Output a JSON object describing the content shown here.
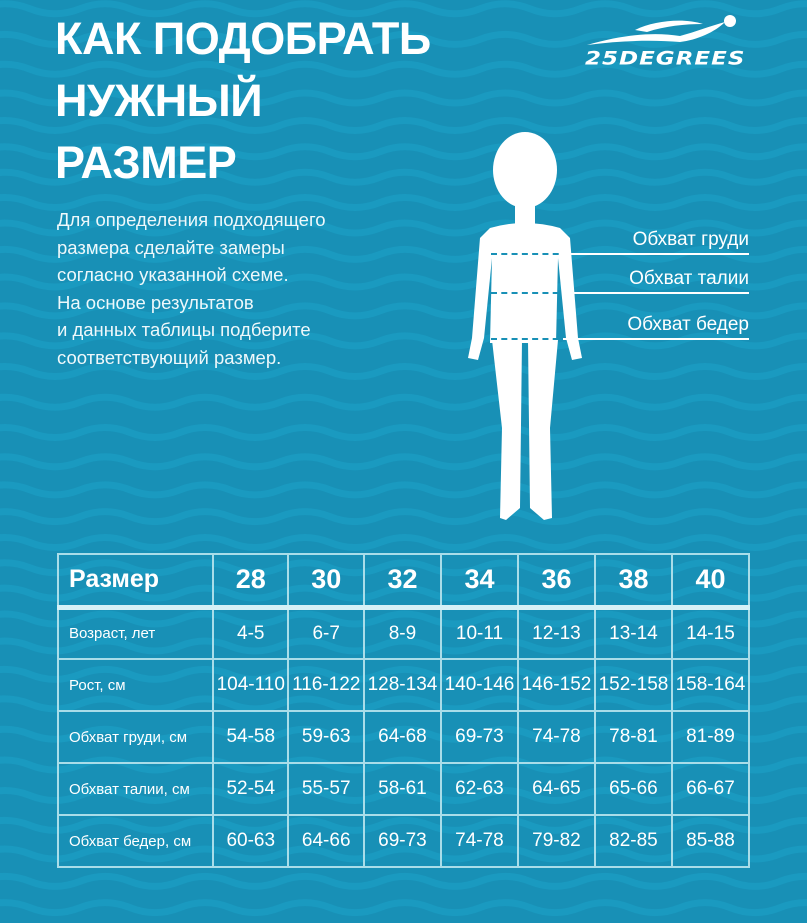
{
  "colors": {
    "background": "#1890b6",
    "text": "#ffffff",
    "table_border": "#a9dde9"
  },
  "title": [
    "КАК ПОДОБРАТЬ",
    "НУЖНЫЙ",
    "РАЗМЕР"
  ],
  "description": [
    "Для определения подходящего",
    "размера сделайте замеры",
    "согласно указанной схеме.",
    "На основе результатов",
    "и данных таблицы подберите",
    "соответствующий размер."
  ],
  "logo": {
    "text": "25DEGREES",
    "icon": "swimmer-logo-icon"
  },
  "measurements": [
    "Обхват груди",
    "Обхват талии",
    "Обхват бедер"
  ],
  "table": {
    "header": [
      "Размер",
      "28",
      "30",
      "32",
      "34",
      "36",
      "38",
      "40"
    ],
    "rows": [
      [
        "Возраст, лет",
        "4-5",
        "6-7",
        "8-9",
        "10-11",
        "12-13",
        "13-14",
        "14-15"
      ],
      [
        "Рост, см",
        "104-110",
        "116-122",
        "128-134",
        "140-146",
        "146-152",
        "152-158",
        "158-164"
      ],
      [
        "Обхват груди, см",
        "54-58",
        "59-63",
        "64-68",
        "69-73",
        "74-78",
        "78-81",
        "81-89"
      ],
      [
        "Обхват талии, см",
        "52-54",
        "55-57",
        "58-61",
        "62-63",
        "64-65",
        "65-66",
        "66-67"
      ],
      [
        "Обхват бедер, см",
        "60-63",
        "64-66",
        "69-73",
        "74-78",
        "79-82",
        "82-85",
        "85-88"
      ]
    ]
  }
}
